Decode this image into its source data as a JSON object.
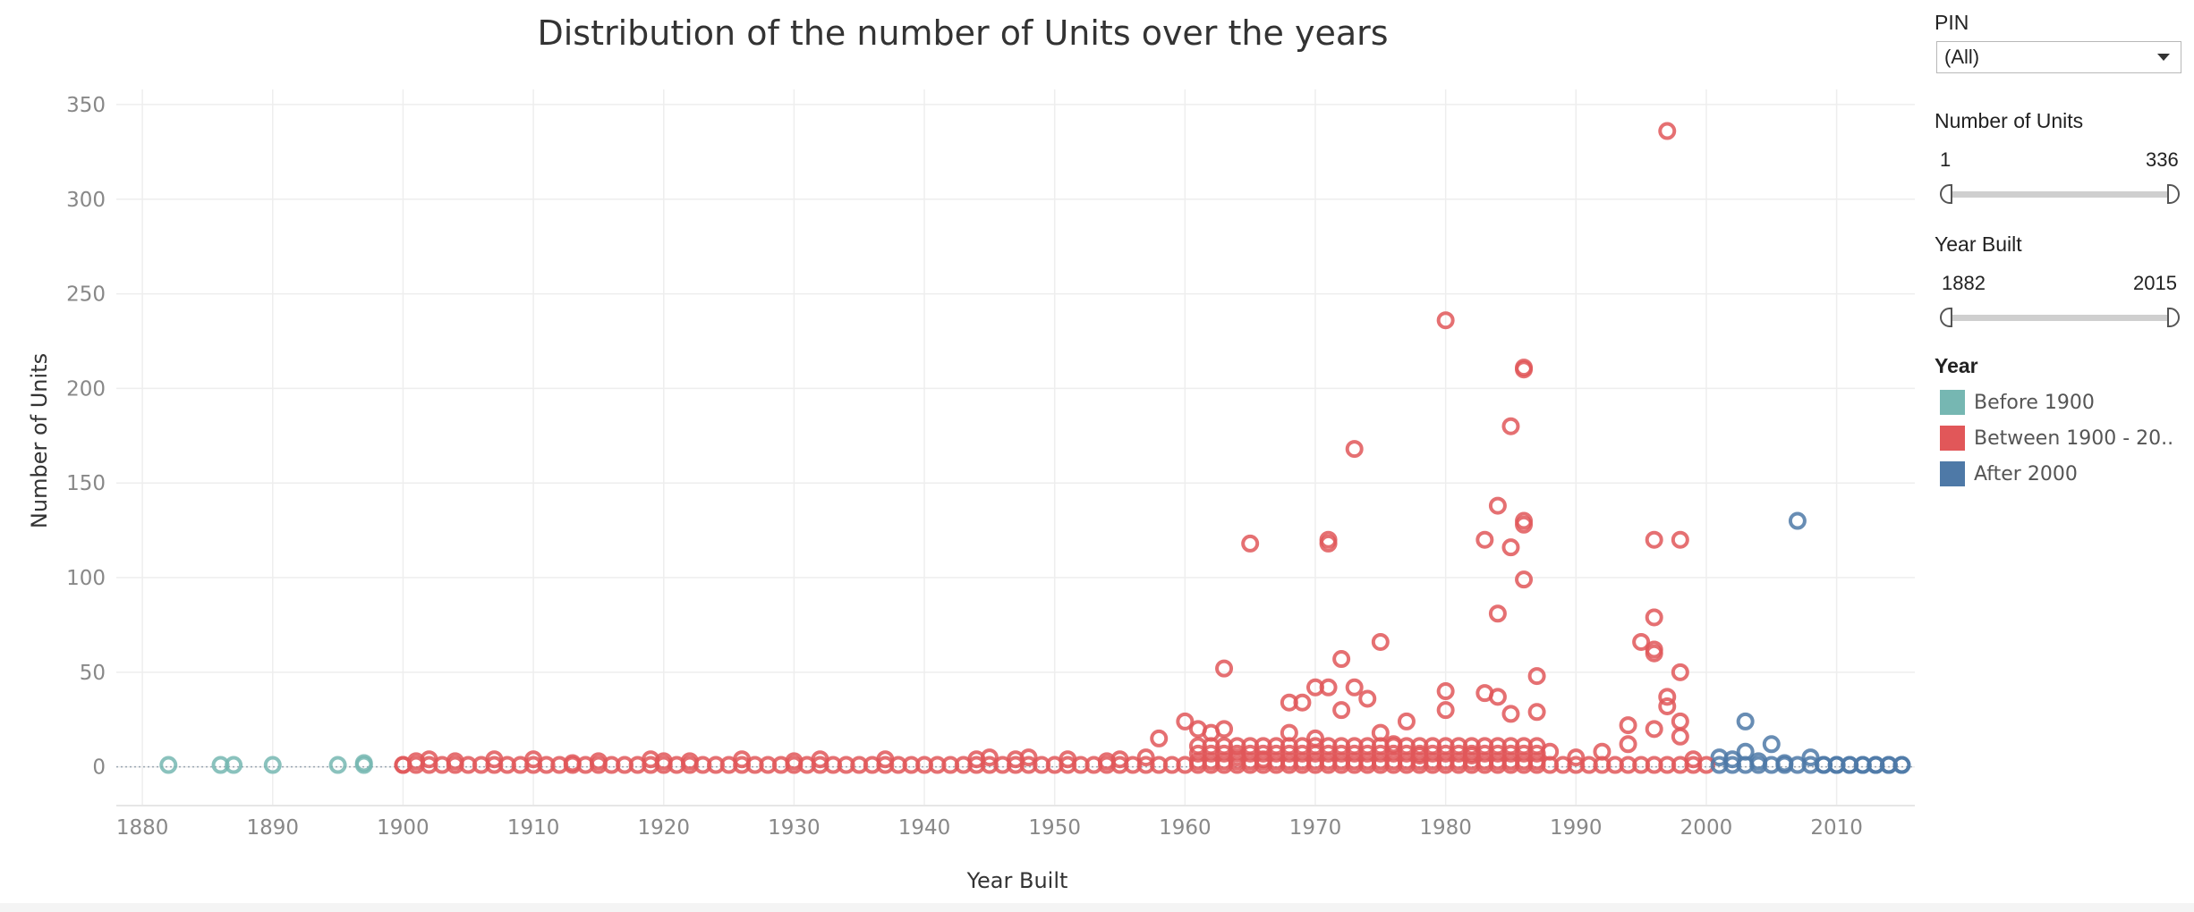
{
  "chart_data": {
    "type": "scatter",
    "title": "Distribution of the number of Units over the years",
    "xlabel": "Year Built",
    "ylabel": "Number of Units",
    "xlim": [
      1878,
      2016
    ],
    "ylim": [
      -20,
      358
    ],
    "x_ticks": [
      "1880",
      "1890",
      "1900",
      "1910",
      "1920",
      "1930",
      "1940",
      "1950",
      "1960",
      "1970",
      "1980",
      "1990",
      "2000",
      "2010"
    ],
    "y_ticks": [
      "0",
      "50",
      "100",
      "150",
      "200",
      "250",
      "300",
      "350"
    ],
    "grid": true,
    "marker": "open-circle",
    "series": [
      {
        "name": "Before 1900",
        "color": "#76b7b2",
        "points": [
          [
            1882,
            1
          ],
          [
            1886,
            1
          ],
          [
            1887,
            1
          ],
          [
            1890,
            1
          ],
          [
            1895,
            1
          ],
          [
            1897,
            1
          ],
          [
            1897,
            2
          ]
        ]
      },
      {
        "name": "Between 1900 - 20..",
        "color": "#e15759",
        "points": [
          [
            1997,
            336
          ],
          [
            1980,
            236
          ],
          [
            1986,
            211
          ],
          [
            1986,
            210
          ],
          [
            1985,
            180
          ],
          [
            1973,
            168
          ],
          [
            1984,
            138
          ],
          [
            1986,
            130
          ],
          [
            1986,
            128
          ],
          [
            1971,
            120
          ],
          [
            1971,
            118
          ],
          [
            1965,
            118
          ],
          [
            1983,
            120
          ],
          [
            1996,
            120
          ],
          [
            1998,
            120
          ],
          [
            1985,
            116
          ],
          [
            1986,
            99
          ],
          [
            1984,
            81
          ],
          [
            1996,
            79
          ],
          [
            1975,
            66
          ],
          [
            1995,
            66
          ],
          [
            1996,
            62
          ],
          [
            1996,
            60
          ],
          [
            1972,
            57
          ],
          [
            1963,
            52
          ],
          [
            1998,
            50
          ],
          [
            1987,
            48
          ],
          [
            1970,
            42
          ],
          [
            1971,
            42
          ],
          [
            1973,
            42
          ],
          [
            1980,
            40
          ],
          [
            1983,
            39
          ],
          [
            1984,
            37
          ],
          [
            1997,
            37
          ],
          [
            1974,
            36
          ],
          [
            1968,
            34
          ],
          [
            1969,
            34
          ],
          [
            1997,
            32
          ],
          [
            1972,
            30
          ],
          [
            1980,
            30
          ],
          [
            1987,
            29
          ],
          [
            1985,
            28
          ],
          [
            1960,
            24
          ],
          [
            1977,
            24
          ],
          [
            1994,
            22
          ],
          [
            1998,
            24
          ],
          [
            1961,
            20
          ],
          [
            1963,
            20
          ],
          [
            1962,
            18
          ],
          [
            1968,
            18
          ],
          [
            1975,
            18
          ],
          [
            1958,
            15
          ],
          [
            1970,
            15
          ],
          [
            1976,
            12
          ],
          [
            1988,
            8
          ],
          [
            1992,
            8
          ],
          [
            1994,
            12
          ],
          [
            1996,
            20
          ],
          [
            1998,
            16
          ],
          [
            1964,
            5
          ],
          [
            1966,
            4
          ],
          [
            1978,
            6
          ],
          [
            1982,
            6
          ],
          [
            1990,
            5
          ],
          [
            1999,
            4
          ],
          [
            1900,
            1
          ],
          [
            1901,
            3
          ],
          [
            1902,
            4
          ],
          [
            1904,
            3
          ],
          [
            1907,
            4
          ],
          [
            1910,
            4
          ],
          [
            1913,
            2
          ],
          [
            1915,
            3
          ],
          [
            1919,
            4
          ],
          [
            1920,
            3
          ],
          [
            1922,
            3
          ],
          [
            1926,
            4
          ],
          [
            1930,
            3
          ],
          [
            1932,
            4
          ],
          [
            1937,
            4
          ],
          [
            1944,
            4
          ],
          [
            1945,
            5
          ],
          [
            1947,
            4
          ],
          [
            1948,
            5
          ],
          [
            1951,
            4
          ],
          [
            1954,
            3
          ],
          [
            1955,
            4
          ],
          [
            1957,
            5
          ]
        ]
      },
      {
        "name": "After 2000",
        "color": "#4e79a7",
        "points": [
          [
            2007,
            130
          ],
          [
            2003,
            24
          ],
          [
            2005,
            12
          ],
          [
            2003,
            8
          ],
          [
            2008,
            5
          ],
          [
            2001,
            5
          ],
          [
            2002,
            4
          ],
          [
            2004,
            3
          ],
          [
            2006,
            2
          ],
          [
            2009,
            1
          ],
          [
            2010,
            1
          ],
          [
            2011,
            1
          ],
          [
            2012,
            1
          ],
          [
            2013,
            1
          ],
          [
            2014,
            1
          ],
          [
            2015,
            1
          ]
        ]
      }
    ]
  },
  "filters": {
    "pin": {
      "label": "PIN",
      "value": "(All)"
    },
    "units": {
      "label": "Number of Units",
      "min": "1",
      "max": "336"
    },
    "year_built": {
      "label": "Year Built",
      "min": "1882",
      "max": "2015"
    }
  },
  "legend": {
    "title": "Year",
    "items": [
      {
        "label": "Before 1900",
        "color": "#76b7b2"
      },
      {
        "label": "Between 1900 - 20..",
        "color": "#e15759"
      },
      {
        "label": "After 2000",
        "color": "#4e79a7"
      }
    ]
  }
}
